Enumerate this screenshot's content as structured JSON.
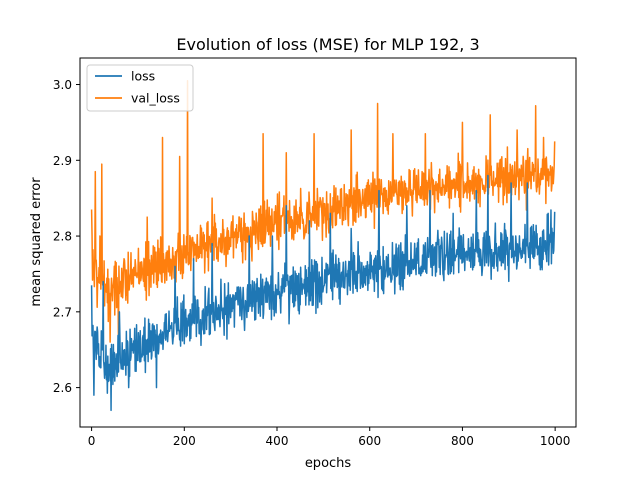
{
  "chart_data": {
    "type": "line",
    "title": "Evolution of loss (MSE) for MLP 192, 3",
    "xlabel": "epochs",
    "ylabel": "mean squared error",
    "xlim": [
      -25,
      1045
    ],
    "ylim": [
      2.548,
      3.035
    ],
    "xticks": [
      0,
      200,
      400,
      600,
      800,
      1000
    ],
    "xtick_labels": [
      "0",
      "200",
      "400",
      "600",
      "800",
      "1000"
    ],
    "yticks": [
      2.6,
      2.7,
      2.8,
      2.9,
      3.0
    ],
    "ytick_labels": [
      "2.6",
      "2.7",
      "2.8",
      "2.9",
      "3.0"
    ],
    "grid": false,
    "legend_position": "top-left",
    "x": {
      "start": 0,
      "end": 999,
      "step": 1
    },
    "series": [
      {
        "name": "loss",
        "color": "#1f77b4",
        "trend": [
          [
            0,
            2.66
          ],
          [
            30,
            2.63
          ],
          [
            100,
            2.65
          ],
          [
            200,
            2.685
          ],
          [
            300,
            2.71
          ],
          [
            400,
            2.725
          ],
          [
            500,
            2.74
          ],
          [
            600,
            2.755
          ],
          [
            700,
            2.765
          ],
          [
            800,
            2.775
          ],
          [
            900,
            2.78
          ],
          [
            1000,
            2.79
          ]
        ],
        "noise_amplitude": 0.035,
        "spikes": [
          [
            0,
            2.735
          ],
          [
            5,
            2.59
          ],
          [
            12,
            2.68
          ],
          [
            25,
            2.74
          ],
          [
            42,
            2.57
          ],
          [
            60,
            2.7
          ],
          [
            80,
            2.6
          ],
          [
            140,
            2.6
          ],
          [
            180,
            2.76
          ],
          [
            220,
            2.77
          ],
          [
            260,
            2.79
          ],
          [
            340,
            2.8
          ],
          [
            390,
            2.8
          ],
          [
            420,
            2.84
          ],
          [
            470,
            2.82
          ],
          [
            515,
            2.83
          ],
          [
            560,
            2.81
          ],
          [
            620,
            2.86
          ],
          [
            680,
            2.84
          ],
          [
            730,
            2.86
          ],
          [
            780,
            2.83
          ],
          [
            830,
            2.86
          ],
          [
            855,
            2.88
          ],
          [
            905,
            2.87
          ],
          [
            940,
            2.87
          ],
          [
            985,
            2.83
          ],
          [
            999,
            2.832
          ]
        ]
      },
      {
        "name": "val_loss",
        "color": "#ff7f0e",
        "trend": [
          [
            0,
            2.76
          ],
          [
            30,
            2.73
          ],
          [
            60,
            2.74
          ],
          [
            100,
            2.75
          ],
          [
            200,
            2.775
          ],
          [
            300,
            2.8
          ],
          [
            400,
            2.815
          ],
          [
            500,
            2.835
          ],
          [
            600,
            2.85
          ],
          [
            700,
            2.86
          ],
          [
            800,
            2.87
          ],
          [
            900,
            2.875
          ],
          [
            1000,
            2.885
          ]
        ],
        "noise_amplitude": 0.035,
        "spikes": [
          [
            0,
            2.835
          ],
          [
            8,
            2.885
          ],
          [
            18,
            2.8
          ],
          [
            22,
            2.895
          ],
          [
            40,
            2.66
          ],
          [
            58,
            2.66
          ],
          [
            70,
            2.77
          ],
          [
            120,
            2.825
          ],
          [
            153,
            2.93
          ],
          [
            190,
            2.905
          ],
          [
            207,
            3.005
          ],
          [
            260,
            2.85
          ],
          [
            370,
            2.935
          ],
          [
            420,
            2.91
          ],
          [
            480,
            2.935
          ],
          [
            560,
            2.94
          ],
          [
            617,
            2.975
          ],
          [
            650,
            2.935
          ],
          [
            720,
            2.935
          ],
          [
            800,
            2.95
          ],
          [
            860,
            2.96
          ],
          [
            918,
            2.94
          ],
          [
            958,
            2.972
          ],
          [
            975,
            2.93
          ],
          [
            999,
            2.925
          ]
        ]
      }
    ]
  }
}
